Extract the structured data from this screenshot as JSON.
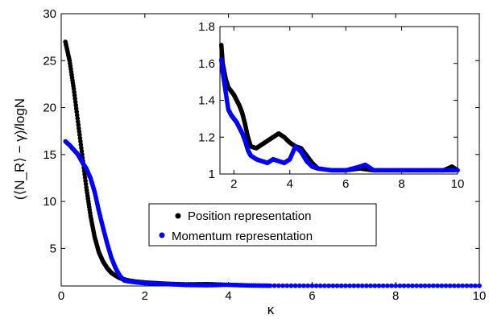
{
  "chart_data": [
    {
      "type": "scatter",
      "xlabel": "κ",
      "ylabel": "(⟨N_R⟩ − γ)/logN",
      "xlim": [
        0,
        10
      ],
      "ylim": [
        1,
        30
      ],
      "xticks": [
        0,
        2,
        4,
        6,
        8,
        10
      ],
      "yticks": [
        5,
        10,
        15,
        20,
        25,
        30
      ],
      "xtick_labels": [
        "0",
        "2",
        "4",
        "6",
        "8",
        "10"
      ],
      "ytick_labels": [
        "5",
        "10",
        "15",
        "20",
        "25",
        "30"
      ],
      "grid": false,
      "legend": {
        "placement": "center-right",
        "entries": [
          "Position representation",
          "Momentum representation"
        ]
      },
      "series": [
        {
          "name": "Position representation",
          "color": "#000000",
          "x": [
            0.1,
            0.2,
            0.3,
            0.4,
            0.5,
            0.6,
            0.7,
            0.8,
            0.9,
            1.0,
            1.1,
            1.2,
            1.3,
            1.4,
            1.5,
            1.6,
            1.8,
            2.0,
            2.5,
            3.0,
            3.5,
            4.0,
            4.5,
            5.0,
            6.0,
            7.0,
            8.0,
            9.0,
            10.0
          ],
          "y": [
            27,
            25,
            22,
            18.5,
            15,
            11.5,
            8.5,
            6.2,
            4.6,
            3.6,
            2.9,
            2.4,
            2.1,
            1.85,
            1.7,
            1.6,
            1.45,
            1.38,
            1.25,
            1.17,
            1.2,
            1.12,
            1.05,
            1.03,
            1.02,
            1.02,
            1.02,
            1.02,
            1.02
          ]
        },
        {
          "name": "Momentum representation",
          "color": "#0000ff",
          "x": [
            0.1,
            0.2,
            0.3,
            0.4,
            0.5,
            0.6,
            0.7,
            0.8,
            0.9,
            1.0,
            1.1,
            1.2,
            1.3,
            1.4,
            1.5,
            1.6,
            1.8,
            2.0,
            2.5,
            3.0,
            3.5,
            4.0,
            4.5,
            5.0,
            6.0,
            7.0,
            8.0,
            9.0,
            10.0
          ],
          "y": [
            16.4,
            16.0,
            15.5,
            15.0,
            14.2,
            13.5,
            12.5,
            11.0,
            9.0,
            7.2,
            5.5,
            4.0,
            2.9,
            2.1,
            1.6,
            1.5,
            1.38,
            1.3,
            1.2,
            1.1,
            1.07,
            1.13,
            1.06,
            1.03,
            1.02,
            1.02,
            1.02,
            1.02,
            1.02
          ]
        }
      ]
    },
    {
      "type": "scatter",
      "xlim": [
        1.5,
        10
      ],
      "ylim": [
        1,
        1.8
      ],
      "xticks": [
        2,
        4,
        6,
        8,
        10
      ],
      "yticks": [
        1,
        1.2,
        1.4,
        1.6,
        1.8
      ],
      "xtick_labels": [
        "2",
        "4",
        "6",
        "8",
        "10"
      ],
      "ytick_labels": [
        "1",
        "1.2",
        "1.4",
        "1.6",
        "1.8"
      ],
      "grid": false,
      "series": [
        {
          "name": "Position representation",
          "color": "#000000",
          "x": [
            1.55,
            1.6,
            1.7,
            1.8,
            1.9,
            2.0,
            2.1,
            2.2,
            2.3,
            2.4,
            2.5,
            2.6,
            2.8,
            3.0,
            3.2,
            3.4,
            3.6,
            3.8,
            4.0,
            4.2,
            4.4,
            4.6,
            4.8,
            5.0,
            5.5,
            6.0,
            6.5,
            7.0,
            7.5,
            8.0,
            8.5,
            9.0,
            9.5,
            9.8,
            10.0
          ],
          "y": [
            1.7,
            1.6,
            1.52,
            1.47,
            1.45,
            1.43,
            1.4,
            1.37,
            1.33,
            1.27,
            1.2,
            1.15,
            1.14,
            1.16,
            1.18,
            1.2,
            1.22,
            1.2,
            1.17,
            1.15,
            1.14,
            1.1,
            1.06,
            1.03,
            1.02,
            1.02,
            1.03,
            1.02,
            1.02,
            1.02,
            1.02,
            1.02,
            1.02,
            1.04,
            1.02
          ]
        },
        {
          "name": "Momentum representation",
          "color": "#0000ff",
          "x": [
            1.55,
            1.6,
            1.7,
            1.8,
            1.9,
            2.0,
            2.1,
            2.2,
            2.3,
            2.4,
            2.5,
            2.6,
            2.8,
            3.0,
            3.2,
            3.4,
            3.6,
            3.8,
            4.0,
            4.2,
            4.4,
            4.6,
            4.8,
            5.0,
            5.5,
            6.0,
            6.5,
            6.7,
            7.0,
            7.5,
            8.0,
            8.5,
            9.0,
            9.5,
            10.0
          ],
          "y": [
            1.62,
            1.55,
            1.45,
            1.35,
            1.32,
            1.3,
            1.28,
            1.25,
            1.22,
            1.18,
            1.13,
            1.1,
            1.08,
            1.07,
            1.06,
            1.08,
            1.07,
            1.06,
            1.08,
            1.15,
            1.12,
            1.07,
            1.04,
            1.03,
            1.02,
            1.02,
            1.04,
            1.05,
            1.02,
            1.02,
            1.02,
            1.02,
            1.02,
            1.02,
            1.02
          ]
        }
      ]
    }
  ]
}
